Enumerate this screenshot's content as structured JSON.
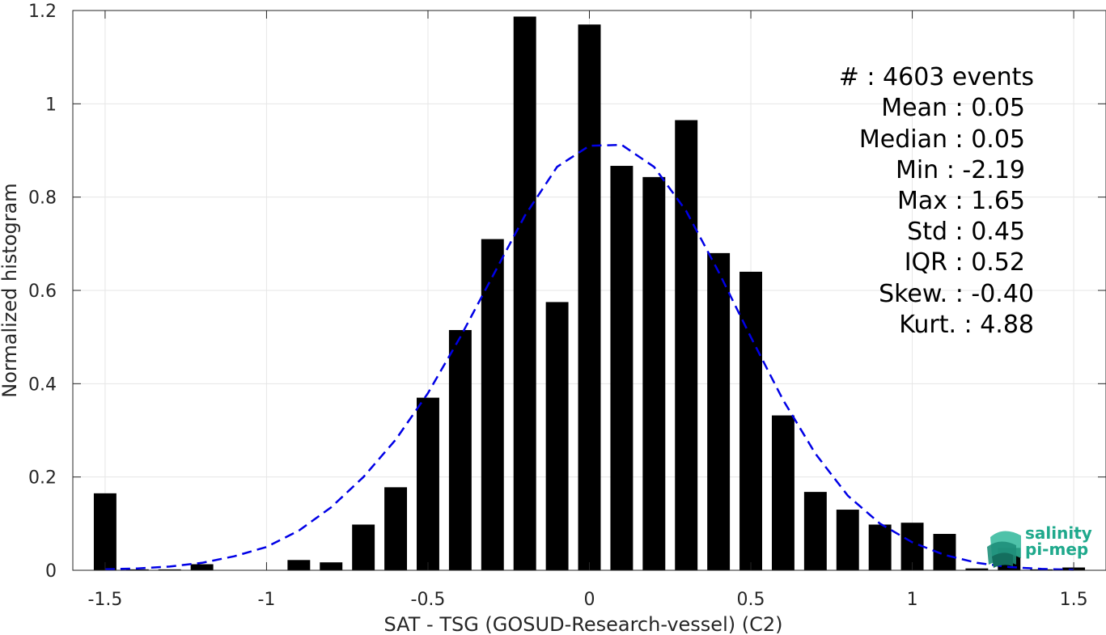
{
  "chart_data": {
    "type": "bar",
    "xlabel": "SAT - TSG (GOSUD-Research-vessel) (C2)",
    "ylabel": "Normalized histogram",
    "xlim": [
      -1.6,
      1.6
    ],
    "ylim": [
      0,
      1.2
    ],
    "grid": true,
    "bar_width": 0.07,
    "x_ticks": [
      -1.5,
      -1,
      -0.5,
      0,
      0.5,
      1,
      1.5
    ],
    "x_tick_labels": [
      "-1.5",
      "-1",
      "-0.5",
      "0",
      "0.5",
      "1",
      "1.5"
    ],
    "y_ticks": [
      0,
      0.2,
      0.4,
      0.6,
      0.8,
      1,
      1.2
    ],
    "y_tick_labels": [
      "0",
      "0.2",
      "0.4",
      "0.6",
      "0.8",
      "1",
      "1.2"
    ],
    "bar_color": "#000000",
    "fit_color": "#0000e6",
    "bars": {
      "x": [
        -1.5,
        -1.4,
        -1.3,
        -1.2,
        -1.1,
        -1.0,
        -0.9,
        -0.8,
        -0.7,
        -0.6,
        -0.5,
        -0.4,
        -0.3,
        -0.2,
        -0.1,
        0.0,
        0.1,
        0.2,
        0.3,
        0.4,
        0.5,
        0.6,
        0.7,
        0.8,
        0.9,
        1.0,
        1.1,
        1.2,
        1.3,
        1.4,
        1.5
      ],
      "values": [
        0.165,
        0.002,
        0.002,
        0.013,
        0.0,
        0.0,
        0.022,
        0.017,
        0.098,
        0.178,
        0.37,
        0.515,
        0.71,
        1.187,
        0.575,
        1.17,
        0.867,
        0.843,
        0.965,
        0.68,
        0.64,
        0.332,
        0.168,
        0.13,
        0.098,
        0.102,
        0.078,
        0.004,
        0.048,
        0.002,
        0.006
      ]
    },
    "fit": {
      "style": "dashed",
      "x": [
        -1.5,
        -1.4,
        -1.3,
        -1.2,
        -1.1,
        -1.0,
        -0.9,
        -0.8,
        -0.7,
        -0.6,
        -0.5,
        -0.4,
        -0.3,
        -0.2,
        -0.1,
        0.0,
        0.1,
        0.2,
        0.3,
        0.4,
        0.5,
        0.6,
        0.7,
        0.8,
        0.9,
        1.0,
        1.1,
        1.2,
        1.3,
        1.4,
        1.5
      ],
      "y": [
        0.002,
        0.004,
        0.008,
        0.016,
        0.03,
        0.05,
        0.085,
        0.135,
        0.2,
        0.28,
        0.38,
        0.5,
        0.63,
        0.76,
        0.865,
        0.91,
        0.912,
        0.865,
        0.77,
        0.64,
        0.5,
        0.365,
        0.25,
        0.16,
        0.1,
        0.06,
        0.033,
        0.016,
        0.007,
        0.003,
        0.001
      ]
    }
  },
  "stats": {
    "lines": [
      "#  : 4603 events",
      "Mean : 0.05",
      "Median : 0.05",
      "Min : -2.19",
      "Max : 1.65",
      "Std : 0.45",
      "IQR : 0.52",
      "Skew. : -0.40",
      "Kurt. : 4.88"
    ]
  },
  "logo": {
    "line1": "salinity",
    "line2": "pi-mep",
    "color": "#1fa98c"
  }
}
